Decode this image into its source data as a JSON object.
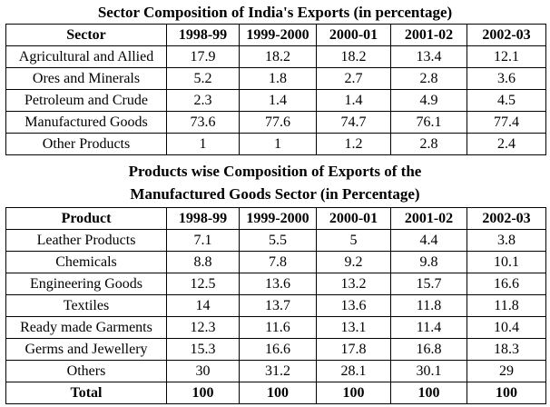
{
  "sector_table": {
    "title": "Sector Composition of India's Exports (in percentage)",
    "headers": [
      "Sector",
      "1998-99",
      "1999-2000",
      "2000-01",
      "2001-02",
      "2002-03"
    ],
    "rows": [
      [
        "Agricultural and Allied",
        "17.9",
        "18.2",
        "18.2",
        "13.4",
        "12.1"
      ],
      [
        "Ores and Minerals",
        "5.2",
        "1.8",
        "2.7",
        "2.8",
        "3.6"
      ],
      [
        "Petroleum and Crude",
        "2.3",
        "1.4",
        "1.4",
        "4.9",
        "4.5"
      ],
      [
        "Manufactured Goods",
        "73.6",
        "77.6",
        "74.7",
        "76.1",
        "77.4"
      ],
      [
        "Other Products",
        "1",
        "1",
        "1.2",
        "2.8",
        "2.4"
      ]
    ]
  },
  "product_table": {
    "title_line1": "Products wise Composition of Exports of the",
    "title_line2": "Manufactured Goods Sector (in Percentage)",
    "headers": [
      "Product",
      "1998-99",
      "1999-2000",
      "2000-01",
      "2001-02",
      "2002-03"
    ],
    "rows": [
      [
        "Leather Products",
        "7.1",
        "5.5",
        "5",
        "4.4",
        "3.8"
      ],
      [
        "Chemicals",
        "8.8",
        "7.8",
        "9.2",
        "9.8",
        "10.1"
      ],
      [
        "Engineering Goods",
        "12.5",
        "13.6",
        "13.2",
        "15.7",
        "16.6"
      ],
      [
        "Textiles",
        "14",
        "13.7",
        "13.6",
        "11.8",
        "11.8"
      ],
      [
        "Ready made Garments",
        "12.3",
        "11.6",
        "13.1",
        "11.4",
        "10.4"
      ],
      [
        "Germs and Jewellery",
        "15.3",
        "16.6",
        "17.8",
        "16.8",
        "18.3"
      ],
      [
        "Others",
        "30",
        "31.2",
        "28.1",
        "30.1",
        "29"
      ]
    ],
    "total_row": [
      "Total",
      "100",
      "100",
      "100",
      "100",
      "100"
    ]
  }
}
